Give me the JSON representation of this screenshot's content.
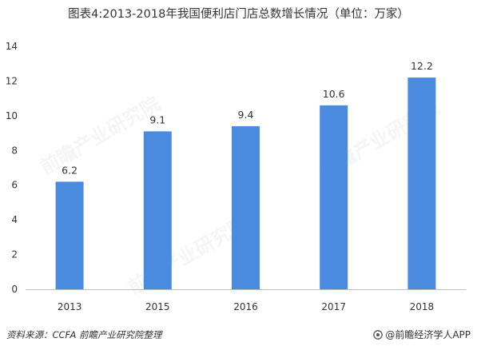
{
  "title": "图表4:2013-2018年我国便利店门店总数增长情况（单位：万家）",
  "source": "资料来源：CCFA  前瞻产业研究院整理",
  "brand": "@前瞻经济学人APP",
  "watermark": "前瞻产业研究院",
  "colors": {
    "bar": "#4A8BE0",
    "axis": "#bfbfbf",
    "text": "#333333"
  },
  "chart_data": {
    "type": "bar",
    "title": "图表4:2013-2018年我国便利店门店总数增长情况（单位：万家）",
    "categories": [
      "2013",
      "2015",
      "2016",
      "2017",
      "2018"
    ],
    "values": [
      6.2,
      9.1,
      9.4,
      10.6,
      12.2
    ],
    "value_labels": [
      "6.2",
      "9.1",
      "9.4",
      "10.6",
      "12.2"
    ],
    "xlabel": "",
    "ylabel": "",
    "ylim": [
      0,
      14
    ],
    "yticks": [
      0,
      2,
      4,
      6,
      8,
      10,
      12,
      14
    ],
    "grid": false,
    "legend": "none"
  }
}
